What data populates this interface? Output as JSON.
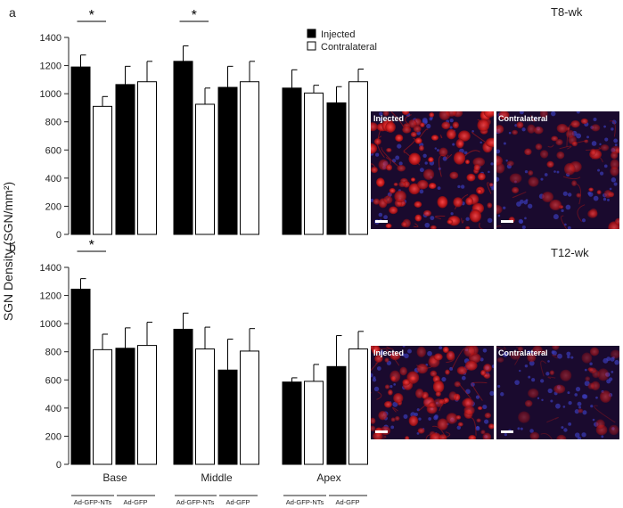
{
  "figure": {
    "ylabel": "SGN Density (SGN/mm²)",
    "legend": {
      "injected": "Injected",
      "contralateral": "Contralateral"
    },
    "colors": {
      "injected": "#000000",
      "contralateral": "#ffffff",
      "image_bg": "#1a0a2e",
      "cell": "#d62020",
      "nucleus": "#3a3ab8"
    },
    "regions": [
      "Base",
      "Middle",
      "Apex"
    ],
    "groups": [
      "Ad-GFP-NTs",
      "Ad-GFP"
    ],
    "image_labels": {
      "injected": "Injected",
      "contralateral": "Contralateral"
    },
    "significance_mark": "*"
  },
  "chart_data": [
    {
      "type": "bar",
      "panel": "a",
      "title": "T8-wk",
      "ylim": [
        0,
        1400
      ],
      "yticks": [
        0,
        200,
        400,
        600,
        800,
        1000,
        1200,
        1400
      ],
      "categories": [
        "Base",
        "Middle",
        "Apex"
      ],
      "subgroups": [
        "Ad-GFP-NTs",
        "Ad-GFP"
      ],
      "series": [
        {
          "name": "Injected",
          "values": [
            [
              1190,
              1065
            ],
            [
              1230,
              1045
            ],
            [
              1040,
              935
            ]
          ],
          "errors": [
            [
              85,
              130
            ],
            [
              110,
              150
            ],
            [
              130,
              115
            ]
          ]
        },
        {
          "name": "Contralateral",
          "values": [
            [
              910,
              1085
            ],
            [
              925,
              1085
            ],
            [
              1005,
              1085
            ]
          ],
          "errors": [
            [
              70,
              145
            ],
            [
              115,
              145
            ],
            [
              55,
              90
            ]
          ]
        }
      ],
      "significance": [
        {
          "region": "Base",
          "between": "Ad-GFP-NTs injected vs contralateral",
          "mark": "*"
        },
        {
          "region": "Middle",
          "between": "Ad-GFP-NTs injected vs contralateral",
          "mark": "*"
        }
      ],
      "grid": false,
      "legend_position": "top-right"
    },
    {
      "type": "bar",
      "panel": "b",
      "title": "T12-wk",
      "ylim": [
        0,
        1400
      ],
      "yticks": [
        0,
        200,
        400,
        600,
        800,
        1000,
        1200,
        1400
      ],
      "categories": [
        "Base",
        "Middle",
        "Apex"
      ],
      "subgroups": [
        "Ad-GFP-NTs",
        "Ad-GFP"
      ],
      "series": [
        {
          "name": "Injected",
          "values": [
            [
              1245,
              825
            ],
            [
              960,
              670
            ],
            [
              585,
              695
            ]
          ],
          "errors": [
            [
              75,
              145
            ],
            [
              115,
              220
            ],
            [
              30,
              220
            ]
          ]
        },
        {
          "name": "Contralateral",
          "values": [
            [
              815,
              845
            ],
            [
              820,
              805
            ],
            [
              590,
              820
            ]
          ],
          "errors": [
            [
              110,
              165
            ],
            [
              155,
              160
            ],
            [
              120,
              125
            ]
          ]
        }
      ],
      "significance": [
        {
          "region": "Base",
          "between": "Ad-GFP-NTs injected vs contralateral",
          "mark": "*"
        }
      ],
      "grid": false
    }
  ]
}
